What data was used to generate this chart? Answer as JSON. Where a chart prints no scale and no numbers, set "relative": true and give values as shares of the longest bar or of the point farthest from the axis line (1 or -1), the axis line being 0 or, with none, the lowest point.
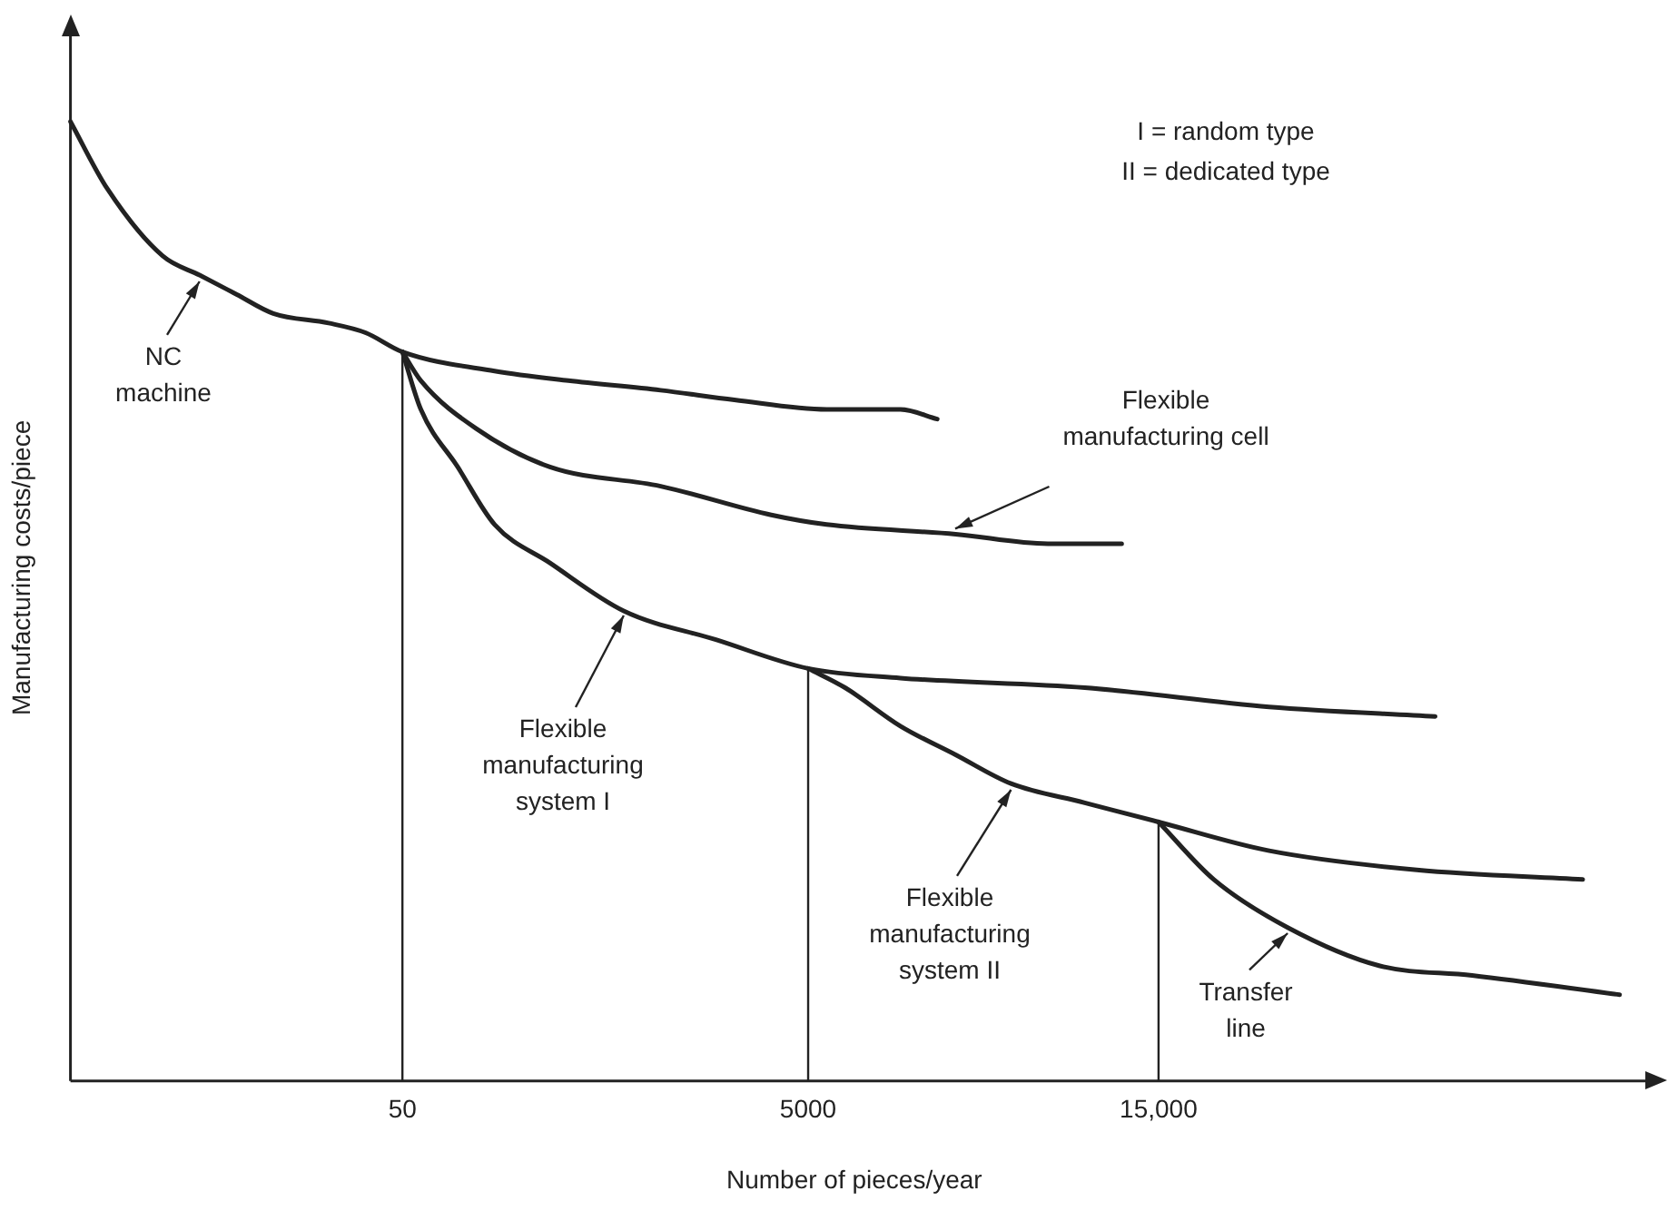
{
  "chart_data": {
    "type": "line",
    "relative": true,
    "xlabel": "Number of pieces/year",
    "ylabel": "Manufacturing costs/piece",
    "categories": [
      null,
      null,
      null,
      null,
      null,
      null,
      null,
      null,
      null,
      null,
      null,
      null,
      null,
      null,
      null,
      null,
      null,
      null,
      "50",
      null,
      null,
      null,
      null,
      null,
      null,
      null,
      null,
      null,
      null,
      null,
      null,
      null,
      null,
      null,
      null,
      null,
      null,
      null,
      null,
      null,
      "5000",
      null,
      null,
      null,
      null,
      null,
      null,
      null,
      null,
      null,
      null,
      null,
      null,
      null,
      null,
      null,
      null,
      null,
      null,
      "15,000",
      null,
      null,
      null,
      null,
      null,
      null,
      null,
      null,
      null,
      null,
      null,
      null,
      null,
      null,
      null,
      null,
      null,
      null,
      null,
      null,
      null,
      null,
      null,
      null,
      null,
      null
    ],
    "series": [
      {
        "color": "#222222",
        "values": [
          1.0,
          null,
          0.93,
          null,
          null,
          0.86,
          null,
          0.84,
          null,
          0.82,
          null,
          0.8,
          null,
          null,
          0.79,
          null,
          0.78,
          null,
          0.76,
          null,
          null,
          null,
          null,
          0.74,
          null,
          null,
          null,
          0.73,
          null,
          null,
          null,
          null,
          0.72,
          null,
          null,
          null,
          0.71,
          null,
          null,
          null,
          null,
          0.7,
          null,
          null,
          null,
          0.7,
          null,
          0.69,
          null,
          null,
          null,
          null,
          null,
          null,
          null,
          null,
          null,
          null,
          null,
          null,
          null,
          null,
          null,
          null,
          null,
          null,
          null,
          null,
          null,
          null,
          null,
          null,
          null,
          null,
          null,
          null,
          null,
          null,
          null,
          null,
          null,
          null,
          null,
          null,
          null,
          null
        ]
      },
      {
        "color": "#222222",
        "values": [
          null,
          null,
          null,
          null,
          null,
          null,
          null,
          null,
          null,
          null,
          null,
          null,
          null,
          null,
          null,
          null,
          null,
          null,
          0.76,
          0.73,
          null,
          null,
          0.68,
          null,
          null,
          null,
          0.64,
          null,
          null,
          null,
          null,
          null,
          0.62,
          null,
          null,
          null,
          null,
          null,
          0.59,
          null,
          null,
          0.58,
          null,
          null,
          null,
          null,
          null,
          null,
          0.57,
          null,
          null,
          null,
          null,
          0.56,
          null,
          null,
          null,
          0.56,
          null,
          null,
          null,
          null,
          null,
          null,
          null,
          null,
          null,
          null,
          null,
          null,
          null,
          null,
          null,
          null,
          null,
          null,
          null,
          null,
          null,
          null,
          null,
          null,
          null,
          null,
          null,
          null
        ]
      },
      {
        "color": "#222222",
        "values": [
          null,
          null,
          null,
          null,
          null,
          null,
          null,
          null,
          null,
          null,
          null,
          null,
          null,
          null,
          null,
          null,
          null,
          null,
          0.76,
          0.7,
          null,
          0.64,
          null,
          0.58,
          null,
          null,
          0.54,
          null,
          null,
          null,
          0.49,
          null,
          null,
          null,
          null,
          0.46,
          null,
          null,
          null,
          null,
          0.43,
          null,
          null,
          null,
          null,
          0.42,
          null,
          null,
          null,
          null,
          null,
          null,
          null,
          null,
          null,
          0.41,
          null,
          null,
          null,
          null,
          null,
          null,
          null,
          null,
          null,
          0.39,
          null,
          null,
          null,
          null,
          null,
          null,
          null,
          null,
          0.38,
          null,
          null,
          null,
          null,
          null,
          null,
          null,
          null,
          null,
          null,
          null
        ]
      },
      {
        "color": "#222222",
        "values": [
          null,
          null,
          null,
          null,
          null,
          null,
          null,
          null,
          null,
          null,
          null,
          null,
          null,
          null,
          null,
          null,
          null,
          null,
          null,
          null,
          null,
          null,
          null,
          null,
          null,
          null,
          null,
          null,
          null,
          null,
          null,
          null,
          null,
          null,
          null,
          null,
          null,
          null,
          null,
          null,
          0.43,
          null,
          0.41,
          null,
          null,
          0.37,
          null,
          null,
          0.34,
          null,
          null,
          0.31,
          null,
          null,
          null,
          0.29,
          null,
          null,
          null,
          0.27,
          null,
          null,
          null,
          null,
          null,
          0.24,
          null,
          null,
          null,
          null,
          null,
          null,
          null,
          0.22,
          null,
          null,
          null,
          null,
          null,
          null,
          null,
          null,
          0.21,
          null,
          null,
          null
        ]
      },
      {
        "color": "#222222",
        "values": [
          null,
          null,
          null,
          null,
          null,
          null,
          null,
          null,
          null,
          null,
          null,
          null,
          null,
          null,
          null,
          null,
          null,
          null,
          null,
          null,
          null,
          null,
          null,
          null,
          null,
          null,
          null,
          null,
          null,
          null,
          null,
          null,
          null,
          null,
          null,
          null,
          null,
          null,
          null,
          null,
          null,
          null,
          null,
          null,
          null,
          null,
          null,
          null,
          null,
          null,
          null,
          null,
          null,
          null,
          null,
          null,
          null,
          null,
          null,
          0.27,
          null,
          null,
          0.21,
          null,
          null,
          null,
          0.16,
          null,
          null,
          null,
          null,
          0.12,
          null,
          null,
          null,
          null,
          0.11,
          null,
          null,
          null,
          null,
          null,
          null,
          null,
          0.09,
          null
        ]
      }
    ],
    "ref_lines": [
      {
        "axis": "x",
        "value": "50"
      },
      {
        "axis": "x",
        "value": "5000"
      },
      {
        "axis": "x",
        "value": "15,000"
      }
    ],
    "annotations": [
      "NC machine",
      "Flexible manufacturing cell",
      "Flexible manufacturing system I",
      "Flexible manufacturing system II",
      "Transfer line",
      "I = random type",
      "II = dedicated type"
    ],
    "legend": false,
    "grid": false,
    "marker": "none",
    "line_style": "solid"
  }
}
